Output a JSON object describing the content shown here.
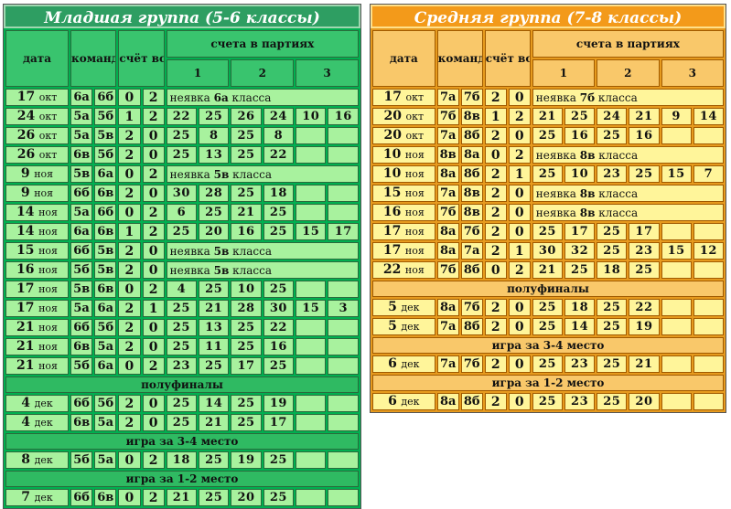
{
  "panels": [
    {
      "title": "Младшая группа (5-6 классы)",
      "headers": {
        "date": "дата",
        "teams": "команды",
        "score": "счёт встречи",
        "sets": "счета в партиях",
        "set1": "1",
        "set2": "2",
        "set3": "3"
      },
      "blocks": [
        {
          "section": null,
          "rows": [
            {
              "day": "17",
              "mon": "окт",
              "t1": "6а",
              "t2": "6б",
              "s1": "0",
              "s2": "2",
              "note": "неявка",
              "note_team": "6а",
              "note_tail": "класса"
            },
            {
              "day": "24",
              "mon": "окт",
              "t1": "5а",
              "t2": "5б",
              "s1": "1",
              "s2": "2",
              "sets": [
                [
                  "22",
                  "25"
                ],
                [
                  "26",
                  "24"
                ],
                [
                  "10",
                  "16"
                ]
              ]
            },
            {
              "day": "26",
              "mon": "окт",
              "t1": "5а",
              "t2": "5в",
              "s1": "2",
              "s2": "0",
              "sets": [
                [
                  "25",
                  "8"
                ],
                [
                  "25",
                  "8"
                ],
                [
                  "",
                  ""
                ]
              ]
            },
            {
              "day": "26",
              "mon": "окт",
              "t1": "6в",
              "t2": "5б",
              "s1": "2",
              "s2": "0",
              "sets": [
                [
                  "25",
                  "13"
                ],
                [
                  "25",
                  "22"
                ],
                [
                  "",
                  ""
                ]
              ]
            },
            {
              "day": "9",
              "mon": "ноя",
              "t1": "5в",
              "t2": "6а",
              "s1": "0",
              "s2": "2",
              "note": "неявка",
              "note_team": "5в",
              "note_tail": "класса"
            },
            {
              "day": "9",
              "mon": "ноя",
              "t1": "6б",
              "t2": "6в",
              "s1": "2",
              "s2": "0",
              "sets": [
                [
                  "30",
                  "28"
                ],
                [
                  "25",
                  "18"
                ],
                [
                  "",
                  ""
                ]
              ]
            },
            {
              "day": "14",
              "mon": "ноя",
              "t1": "5а",
              "t2": "6б",
              "s1": "0",
              "s2": "2",
              "sets": [
                [
                  "6",
                  "25"
                ],
                [
                  "21",
                  "25"
                ],
                [
                  "",
                  ""
                ]
              ]
            },
            {
              "day": "14",
              "mon": "ноя",
              "t1": "6а",
              "t2": "6в",
              "s1": "1",
              "s2": "2",
              "sets": [
                [
                  "25",
                  "20"
                ],
                [
                  "16",
                  "25"
                ],
                [
                  "15",
                  "17"
                ]
              ]
            },
            {
              "day": "15",
              "mon": "ноя",
              "t1": "6б",
              "t2": "5в",
              "s1": "2",
              "s2": "0",
              "note": "неявка",
              "note_team": "5в",
              "note_tail": "класса"
            },
            {
              "day": "16",
              "mon": "ноя",
              "t1": "5б",
              "t2": "5в",
              "s1": "2",
              "s2": "0",
              "note": "неявка",
              "note_team": "5в",
              "note_tail": "класса"
            },
            {
              "day": "17",
              "mon": "ноя",
              "t1": "5в",
              "t2": "6в",
              "s1": "0",
              "s2": "2",
              "sets": [
                [
                  "4",
                  "25"
                ],
                [
                  "10",
                  "25"
                ],
                [
                  "",
                  ""
                ]
              ]
            },
            {
              "day": "17",
              "mon": "ноя",
              "t1": "5а",
              "t2": "6а",
              "s1": "2",
              "s2": "1",
              "sets": [
                [
                  "25",
                  "21"
                ],
                [
                  "28",
                  "30"
                ],
                [
                  "15",
                  "3"
                ]
              ]
            },
            {
              "day": "21",
              "mon": "ноя",
              "t1": "6б",
              "t2": "5б",
              "s1": "2",
              "s2": "0",
              "sets": [
                [
                  "25",
                  "13"
                ],
                [
                  "25",
                  "22"
                ],
                [
                  "",
                  ""
                ]
              ]
            },
            {
              "day": "21",
              "mon": "ноя",
              "t1": "6в",
              "t2": "5а",
              "s1": "2",
              "s2": "0",
              "sets": [
                [
                  "25",
                  "11"
                ],
                [
                  "25",
                  "16"
                ],
                [
                  "",
                  ""
                ]
              ]
            },
            {
              "day": "21",
              "mon": "ноя",
              "t1": "5б",
              "t2": "6а",
              "s1": "0",
              "s2": "2",
              "sets": [
                [
                  "23",
                  "25"
                ],
                [
                  "17",
                  "25"
                ],
                [
                  "",
                  ""
                ]
              ]
            }
          ]
        },
        {
          "section": "полуфиналы",
          "rows": [
            {
              "day": "4",
              "mon": "дек",
              "t1": "6б",
              "t2": "5б",
              "s1": "2",
              "s2": "0",
              "sets": [
                [
                  "25",
                  "14"
                ],
                [
                  "25",
                  "19"
                ],
                [
                  "",
                  ""
                ]
              ]
            },
            {
              "day": "4",
              "mon": "дек",
              "t1": "6в",
              "t2": "5а",
              "s1": "2",
              "s2": "0",
              "sets": [
                [
                  "25",
                  "21"
                ],
                [
                  "25",
                  "17"
                ],
                [
                  "",
                  ""
                ]
              ]
            }
          ]
        },
        {
          "section": "игра за 3-4 место",
          "rows": [
            {
              "day": "8",
              "mon": "дек",
              "t1": "5б",
              "t2": "5а",
              "s1": "0",
              "s2": "2",
              "sets": [
                [
                  "18",
                  "25"
                ],
                [
                  "19",
                  "25"
                ],
                [
                  "",
                  ""
                ]
              ]
            }
          ]
        },
        {
          "section": "игра за 1-2 место",
          "rows": [
            {
              "day": "7",
              "mon": "дек",
              "t1": "6б",
              "t2": "6в",
              "s1": "0",
              "s2": "2",
              "sets": [
                [
                  "21",
                  "25"
                ],
                [
                  "20",
                  "25"
                ],
                [
                  "",
                  ""
                ]
              ]
            }
          ]
        }
      ]
    },
    {
      "title": "Средняя группа (7-8 классы)",
      "headers": {
        "date": "дата",
        "teams": "команды",
        "score": "счёт встречи",
        "sets": "счета в партиях",
        "set1": "1",
        "set2": "2",
        "set3": "3"
      },
      "blocks": [
        {
          "section": null,
          "rows": [
            {
              "day": "17",
              "mon": "окт",
              "t1": "7а",
              "t2": "7б",
              "s1": "2",
              "s2": "0",
              "note": "неявка",
              "note_team": "7б",
              "note_tail": "класса"
            },
            {
              "day": "20",
              "mon": "окт",
              "t1": "7б",
              "t2": "8в",
              "s1": "1",
              "s2": "2",
              "sets": [
                [
                  "21",
                  "25"
                ],
                [
                  "24",
                  "21"
                ],
                [
                  "9",
                  "14"
                ]
              ]
            },
            {
              "day": "20",
              "mon": "окт",
              "t1": "7а",
              "t2": "8б",
              "s1": "2",
              "s2": "0",
              "sets": [
                [
                  "25",
                  "16"
                ],
                [
                  "25",
                  "16"
                ],
                [
                  "",
                  ""
                ]
              ]
            },
            {
              "day": "10",
              "mon": "ноя",
              "t1": "8в",
              "t2": "8а",
              "s1": "0",
              "s2": "2",
              "note": "неявка",
              "note_team": "8в",
              "note_tail": "класса"
            },
            {
              "day": "10",
              "mon": "ноя",
              "t1": "8а",
              "t2": "8б",
              "s1": "2",
              "s2": "1",
              "sets": [
                [
                  "25",
                  "10"
                ],
                [
                  "23",
                  "25"
                ],
                [
                  "15",
                  "7"
                ]
              ]
            },
            {
              "day": "15",
              "mon": "ноя",
              "t1": "7а",
              "t2": "8в",
              "s1": "2",
              "s2": "0",
              "note": "неявка",
              "note_team": "8в",
              "note_tail": "класса"
            },
            {
              "day": "16",
              "mon": "ноя",
              "t1": "7б",
              "t2": "8в",
              "s1": "2",
              "s2": "0",
              "note": "неявка",
              "note_team": "8в",
              "note_tail": "класса"
            },
            {
              "day": "17",
              "mon": "ноя",
              "t1": "8а",
              "t2": "7б",
              "s1": "2",
              "s2": "0",
              "sets": [
                [
                  "25",
                  "17"
                ],
                [
                  "25",
                  "17"
                ],
                [
                  "",
                  ""
                ]
              ]
            },
            {
              "day": "17",
              "mon": "ноя",
              "t1": "8а",
              "t2": "7а",
              "s1": "2",
              "s2": "1",
              "sets": [
                [
                  "30",
                  "32"
                ],
                [
                  "25",
                  "23"
                ],
                [
                  "15",
                  "12"
                ]
              ]
            },
            {
              "day": "22",
              "mon": "ноя",
              "t1": "7б",
              "t2": "8б",
              "s1": "0",
              "s2": "2",
              "sets": [
                [
                  "21",
                  "25"
                ],
                [
                  "18",
                  "25"
                ],
                [
                  "",
                  ""
                ]
              ]
            }
          ]
        },
        {
          "section": "полуфиналы",
          "rows": [
            {
              "day": "5",
              "mon": "дек",
              "t1": "8а",
              "t2": "7б",
              "s1": "2",
              "s2": "0",
              "sets": [
                [
                  "25",
                  "18"
                ],
                [
                  "25",
                  "22"
                ],
                [
                  "",
                  ""
                ]
              ]
            },
            {
              "day": "5",
              "mon": "дек",
              "t1": "7а",
              "t2": "8б",
              "s1": "2",
              "s2": "0",
              "sets": [
                [
                  "25",
                  "14"
                ],
                [
                  "25",
                  "19"
                ],
                [
                  "",
                  ""
                ]
              ]
            }
          ]
        },
        {
          "section": "игра за 3-4 место",
          "rows": [
            {
              "day": "6",
              "mon": "дек",
              "t1": "7а",
              "t2": "7б",
              "s1": "2",
              "s2": "0",
              "sets": [
                [
                  "25",
                  "23"
                ],
                [
                  "25",
                  "21"
                ],
                [
                  "",
                  ""
                ]
              ]
            }
          ]
        },
        {
          "section": "игра за 1-2 место",
          "rows": [
            {
              "day": "6",
              "mon": "дек",
              "t1": "8а",
              "t2": "8б",
              "s1": "2",
              "s2": "0",
              "sets": [
                [
                  "25",
                  "23"
                ],
                [
                  "25",
                  "20"
                ],
                [
                  "",
                  ""
                ]
              ]
            }
          ]
        }
      ]
    }
  ]
}
